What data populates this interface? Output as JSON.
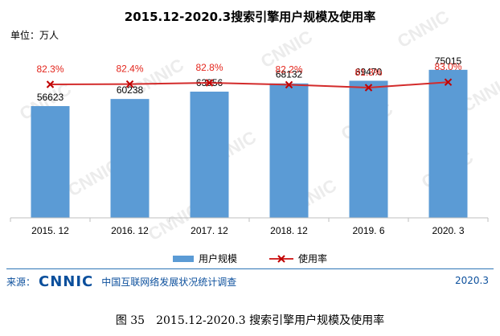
{
  "title": "2015.12-2020.3搜索引擎用户规模及使用率",
  "unit_label": "单位：万人",
  "watermark": "CNNIC",
  "legend": {
    "bar_label": "用户规模",
    "line_label": "使用率"
  },
  "source": {
    "label": "来源：",
    "logo_text": "CNNIC",
    "org": "中国互联网络发展状况统计调查",
    "date": "2020.3"
  },
  "caption": "图 35　2015.12-2020.3 搜索引擎用户规模及使用率",
  "colors": {
    "bar": "#5b9bd5",
    "line": "#d32b2b",
    "rate_text": "#e3241b",
    "brand": "#0b4f9c"
  },
  "chart_data": {
    "type": "bar",
    "title": "2015.12-2020.3搜索引擎用户规模及使用率",
    "categories": [
      "2015. 12",
      "2016. 12",
      "2017. 12",
      "2018. 12",
      "2019. 6",
      "2020. 3"
    ],
    "series": [
      {
        "name": "用户规模",
        "type": "bar",
        "values": [
          56623,
          60238,
          63956,
          68132,
          69470,
          75015
        ],
        "labels": [
          "56623",
          "60238",
          "63956",
          "68132",
          "69470",
          "75015"
        ]
      },
      {
        "name": "使用率",
        "type": "line",
        "values": [
          82.3,
          82.4,
          82.8,
          82.2,
          81.3,
          83.0
        ],
        "labels": [
          "82.3%",
          "82.4%",
          "82.8%",
          "82.2%",
          "81.3%",
          "83.0%"
        ]
      }
    ],
    "ylabel": "单位：万人",
    "bar_ylim": [
      0,
      80000
    ],
    "rate_ylim": [
      0,
      100
    ],
    "legend_position": "bottom-center",
    "grid": false
  }
}
